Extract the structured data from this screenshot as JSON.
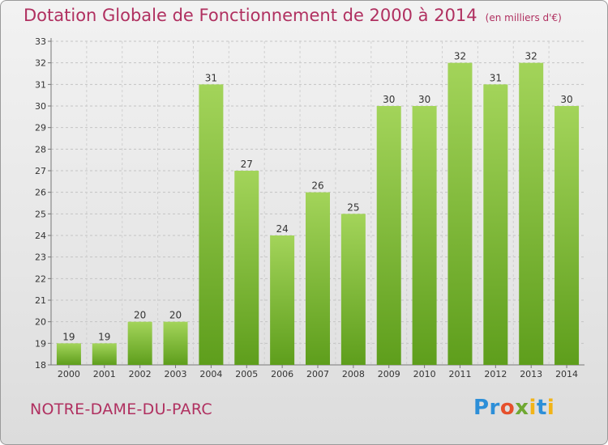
{
  "title": "Dotation Globale de Fonctionnement de 2000 à 2014",
  "units": "(en milliers d'€)",
  "commune": "NOTRE-DAME-DU-PARC",
  "logo": "Proxiti",
  "colors": {
    "bar_top": "#a3d45a",
    "bar_bottom": "#5e9e1c",
    "title": "#b03060"
  },
  "chart_data": {
    "type": "bar",
    "categories": [
      "2000",
      "2001",
      "2002",
      "2003",
      "2004",
      "2005",
      "2006",
      "2007",
      "2008",
      "2009",
      "2010",
      "2011",
      "2012",
      "2013",
      "2014"
    ],
    "values": [
      19,
      19,
      20,
      20,
      31,
      27,
      24,
      26,
      25,
      30,
      30,
      32,
      31,
      32,
      30
    ],
    "ylim": [
      18,
      33
    ],
    "yticks": [
      18,
      19,
      20,
      21,
      22,
      23,
      24,
      25,
      26,
      27,
      28,
      29,
      30,
      31,
      32,
      33
    ],
    "grid": true
  }
}
